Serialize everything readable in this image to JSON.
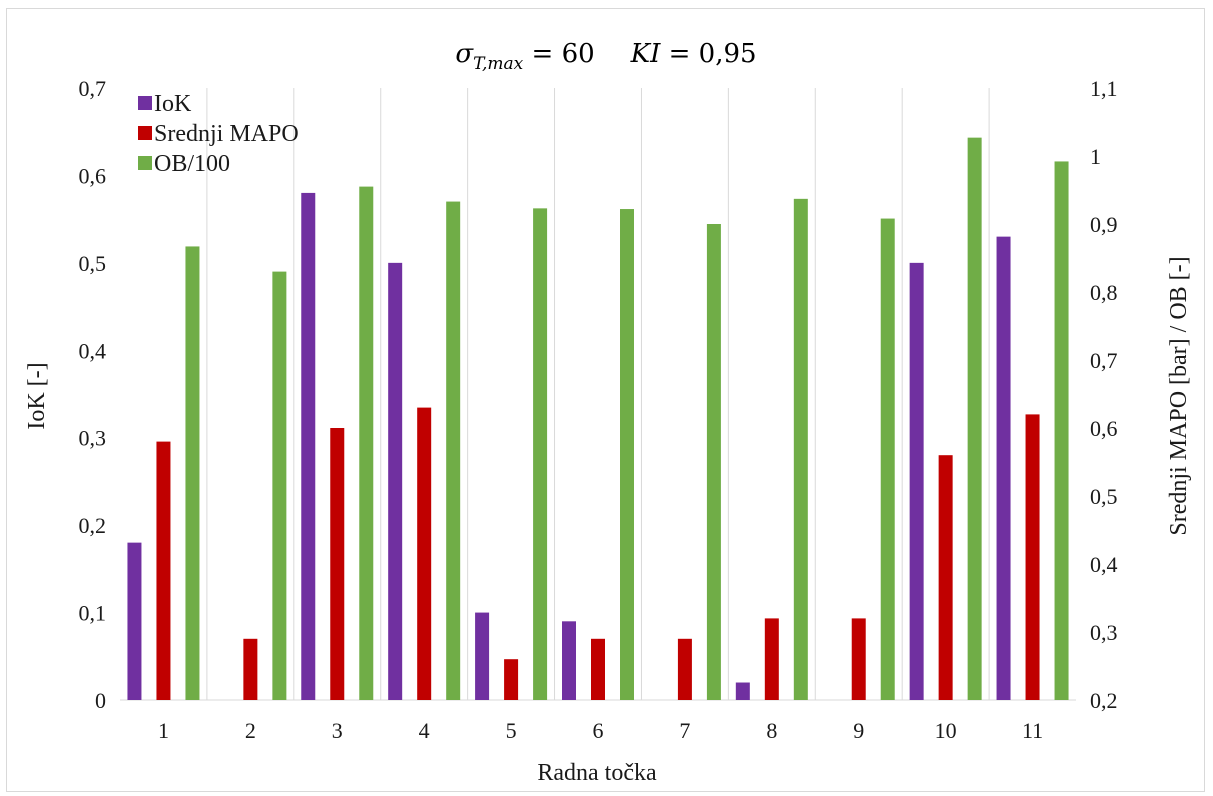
{
  "chart_data": {
    "type": "bar",
    "title_parts": {
      "sigma": "σ",
      "sub": "T,max",
      "eq1": " = 60",
      "ki": "KI",
      "eq2": " = 0,95"
    },
    "xlabel": "Radna točka",
    "ylabel": "IoK [-]",
    "y2label": "Srednji MAPO [bar] / OB [-]",
    "categories": [
      "1",
      "2",
      "3",
      "4",
      "5",
      "6",
      "7",
      "8",
      "9",
      "10",
      "11"
    ],
    "ylim": [
      0,
      0.7
    ],
    "y2lim": [
      0.2,
      1.1
    ],
    "y_ticks": [
      "0",
      "0,1",
      "0,2",
      "0,3",
      "0,4",
      "0,5",
      "0,6",
      "0,7"
    ],
    "y2_ticks": [
      "0,2",
      "0,3",
      "0,4",
      "0,5",
      "0,6",
      "0,7",
      "0,8",
      "0,9",
      "1",
      "1,1"
    ],
    "grid": "vertical",
    "legend_position": "top-left",
    "series": [
      {
        "name": "IoK",
        "axis": "left",
        "color": "#7030a0",
        "values": [
          0.18,
          0.0,
          0.58,
          0.5,
          0.1,
          0.09,
          0.0,
          0.02,
          0.0,
          0.5,
          0.53
        ]
      },
      {
        "name": "Srednji MAPO",
        "axis": "right",
        "color": "#c00000",
        "values": [
          0.58,
          0.29,
          0.6,
          0.63,
          0.26,
          0.29,
          0.29,
          0.32,
          0.32,
          0.56,
          0.62
        ]
      },
      {
        "name": "OB/100",
        "axis": "right",
        "color": "#70ad47",
        "values": [
          0.867,
          0.83,
          0.955,
          0.933,
          0.923,
          0.922,
          0.9,
          0.937,
          0.908,
          1.027,
          0.992
        ]
      }
    ]
  }
}
